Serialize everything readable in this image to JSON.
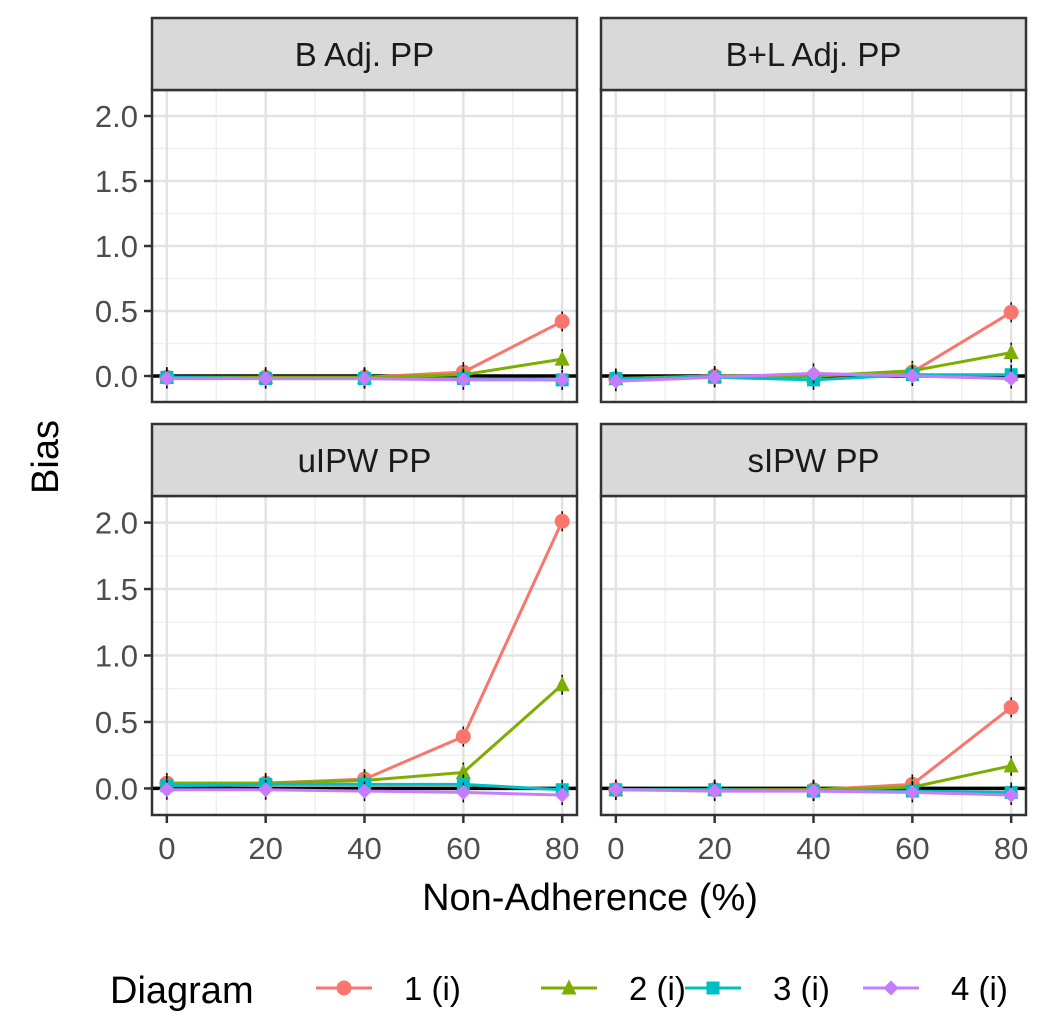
{
  "chart_data": {
    "type": "line",
    "facet_layout": "2x2",
    "shared_x": [
      0,
      20,
      40,
      60,
      80
    ],
    "xlabel": "Non-Adherence (%)",
    "ylabel": "Bias",
    "ylim": [
      -0.2,
      2.2
    ],
    "xlim": [
      -3,
      83
    ],
    "x_ticks": [
      "0",
      "20",
      "40",
      "60",
      "80"
    ],
    "y_ticks": [
      "0.0",
      "0.5",
      "1.0",
      "1.5",
      "2.0"
    ],
    "reference_line_y": 0,
    "grid": true,
    "legend": {
      "title": "Diagram",
      "position": "bottom",
      "entries": [
        "1 (i)",
        "2 (i)",
        "3 (i)",
        "4 (i)"
      ]
    },
    "series_colors": [
      "#F8766D",
      "#7CAE00",
      "#00BFC4",
      "#C77CFF"
    ],
    "series_markers": [
      "circle",
      "triangle",
      "square",
      "diamond"
    ],
    "panels": [
      {
        "title": "B Adj. PP",
        "series": [
          {
            "name": "1 (i)",
            "values": [
              -0.01,
              -0.01,
              -0.01,
              0.03,
              0.42
            ]
          },
          {
            "name": "2 (i)",
            "values": [
              -0.01,
              -0.01,
              -0.01,
              0.01,
              0.13
            ]
          },
          {
            "name": "3 (i)",
            "values": [
              -0.01,
              -0.02,
              -0.02,
              -0.02,
              -0.03
            ]
          },
          {
            "name": "4 (i)",
            "values": [
              -0.02,
              -0.02,
              -0.02,
              -0.03,
              -0.03
            ]
          }
        ]
      },
      {
        "title": "B+L Adj. PP",
        "series": [
          {
            "name": "1 (i)",
            "values": [
              -0.02,
              0.0,
              0.0,
              0.03,
              0.49
            ]
          },
          {
            "name": "2 (i)",
            "values": [
              -0.02,
              0.0,
              0.0,
              0.04,
              0.18
            ]
          },
          {
            "name": "3 (i)",
            "values": [
              -0.02,
              -0.01,
              -0.03,
              0.01,
              0.01
            ]
          },
          {
            "name": "4 (i)",
            "values": [
              -0.04,
              -0.01,
              0.02,
              0.0,
              -0.02
            ]
          }
        ]
      },
      {
        "title": "uIPW PP",
        "series": [
          {
            "name": "1 (i)",
            "values": [
              0.04,
              0.04,
              0.07,
              0.39,
              2.01
            ]
          },
          {
            "name": "2 (i)",
            "values": [
              0.04,
              0.04,
              0.06,
              0.12,
              0.78
            ]
          },
          {
            "name": "3 (i)",
            "values": [
              0.02,
              0.03,
              0.03,
              0.03,
              -0.01
            ]
          },
          {
            "name": "4 (i)",
            "values": [
              -0.01,
              -0.01,
              -0.02,
              -0.03,
              -0.05
            ]
          }
        ]
      },
      {
        "title": "sIPW PP",
        "series": [
          {
            "name": "1 (i)",
            "values": [
              -0.01,
              -0.01,
              -0.01,
              0.03,
              0.61
            ]
          },
          {
            "name": "2 (i)",
            "values": [
              -0.01,
              -0.01,
              -0.01,
              0.01,
              0.17
            ]
          },
          {
            "name": "3 (i)",
            "values": [
              -0.01,
              -0.01,
              -0.02,
              -0.02,
              -0.03
            ]
          },
          {
            "name": "4 (i)",
            "values": [
              -0.01,
              -0.02,
              -0.02,
              -0.03,
              -0.05
            ]
          }
        ]
      }
    ]
  }
}
